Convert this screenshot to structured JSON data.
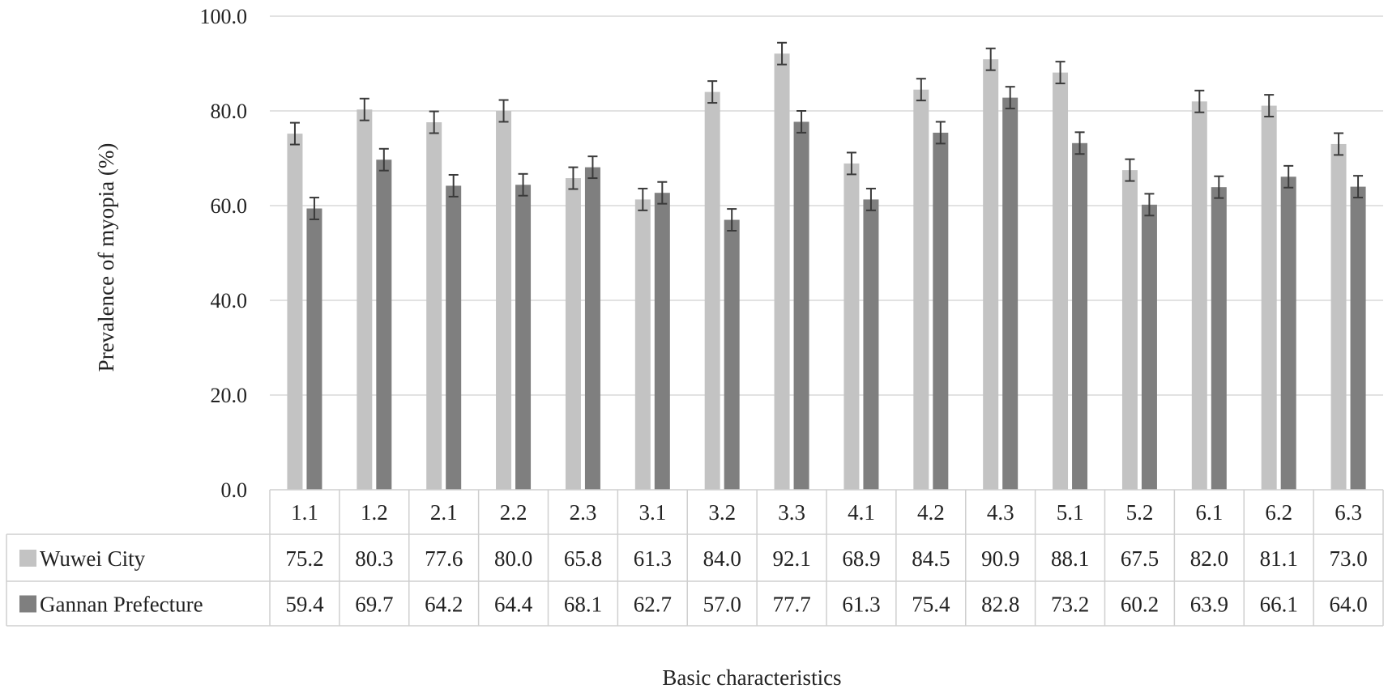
{
  "chart_data": {
    "type": "bar",
    "title": "",
    "xlabel": "Basic characteristics",
    "ylabel": "Prevalence of myopia (%)",
    "ylim": [
      0,
      100
    ],
    "yticks": [
      "0.0",
      "20.0",
      "40.0",
      "60.0",
      "80.0",
      "100.0"
    ],
    "grid": true,
    "legend": "data-table-left",
    "error_bar_half_width": 2.3,
    "categories": [
      "1.1",
      "1.2",
      "2.1",
      "2.2",
      "2.3",
      "3.1",
      "3.2",
      "3.3",
      "4.1",
      "4.2",
      "4.3",
      "5.1",
      "5.2",
      "6.1",
      "6.2",
      "6.3"
    ],
    "series": [
      {
        "name": "Wuwei City",
        "color": "#c3c3c3",
        "values": [
          75.2,
          80.3,
          77.6,
          80.0,
          65.8,
          61.3,
          84.0,
          92.1,
          68.9,
          84.5,
          90.9,
          88.1,
          67.5,
          82.0,
          81.1,
          73.0
        ],
        "labels": [
          "75.2",
          "80.3",
          "77.6",
          "80.0",
          "65.8",
          "61.3",
          "84.0",
          "92.1",
          "68.9",
          "84.5",
          "90.9",
          "88.1",
          "67.5",
          "82.0",
          "81.1",
          "73.0"
        ]
      },
      {
        "name": "Gannan Prefecture",
        "color": "#7f7f7f",
        "values": [
          59.4,
          69.7,
          64.2,
          64.4,
          68.1,
          62.7,
          57.0,
          77.7,
          61.3,
          75.4,
          82.8,
          73.2,
          60.2,
          63.9,
          66.1,
          64.0
        ],
        "labels": [
          "59.4",
          "69.7",
          "64.2",
          "64.4",
          "68.1",
          "62.7",
          "57.0",
          "77.7",
          "61.3",
          "75.4",
          "82.8",
          "73.2",
          "60.2",
          "63.9",
          "66.1",
          "64.0"
        ]
      }
    ]
  }
}
